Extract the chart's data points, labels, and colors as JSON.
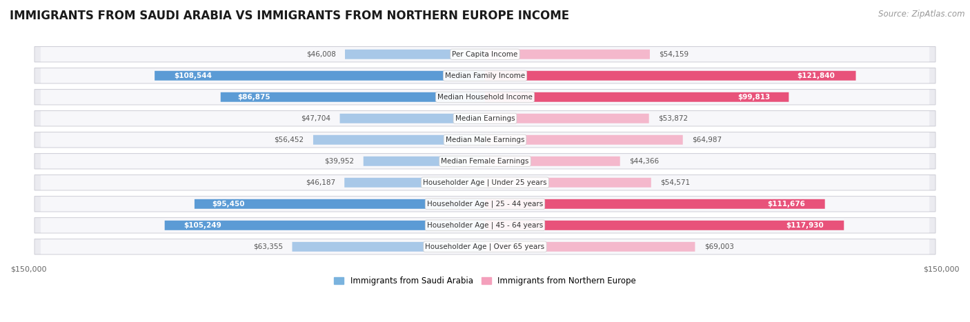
{
  "title": "IMMIGRANTS FROM SAUDI ARABIA VS IMMIGRANTS FROM NORTHERN EUROPE INCOME",
  "source": "Source: ZipAtlas.com",
  "categories": [
    "Per Capita Income",
    "Median Family Income",
    "Median Household Income",
    "Median Earnings",
    "Median Male Earnings",
    "Median Female Earnings",
    "Householder Age | Under 25 years",
    "Householder Age | 25 - 44 years",
    "Householder Age | 45 - 64 years",
    "Householder Age | Over 65 years"
  ],
  "saudi_values": [
    46008,
    108544,
    86875,
    47704,
    56452,
    39952,
    46187,
    95450,
    105249,
    63355
  ],
  "northern_values": [
    54159,
    121840,
    99813,
    53872,
    64987,
    44366,
    54571,
    111676,
    117930,
    69003
  ],
  "saudi_color_light": "#a8c8e8",
  "saudi_color_dark": "#5b9bd5",
  "northern_color_light": "#f4b8cc",
  "northern_color_dark": "#e8527a",
  "row_bg_color": "#ebebf0",
  "row_inner_color": "#f7f7fa",
  "max_value": 150000,
  "label_saudi": "Immigrants from Saudi Arabia",
  "label_northern": "Immigrants from Northern Europe",
  "title_fontsize": 12,
  "source_fontsize": 8.5,
  "category_fontsize": 7.5,
  "value_fontsize": 7.5,
  "tick_fontsize": 8,
  "threshold": 80000,
  "legend_saudi_color": "#7ab3de",
  "legend_northern_color": "#f4a0bc"
}
